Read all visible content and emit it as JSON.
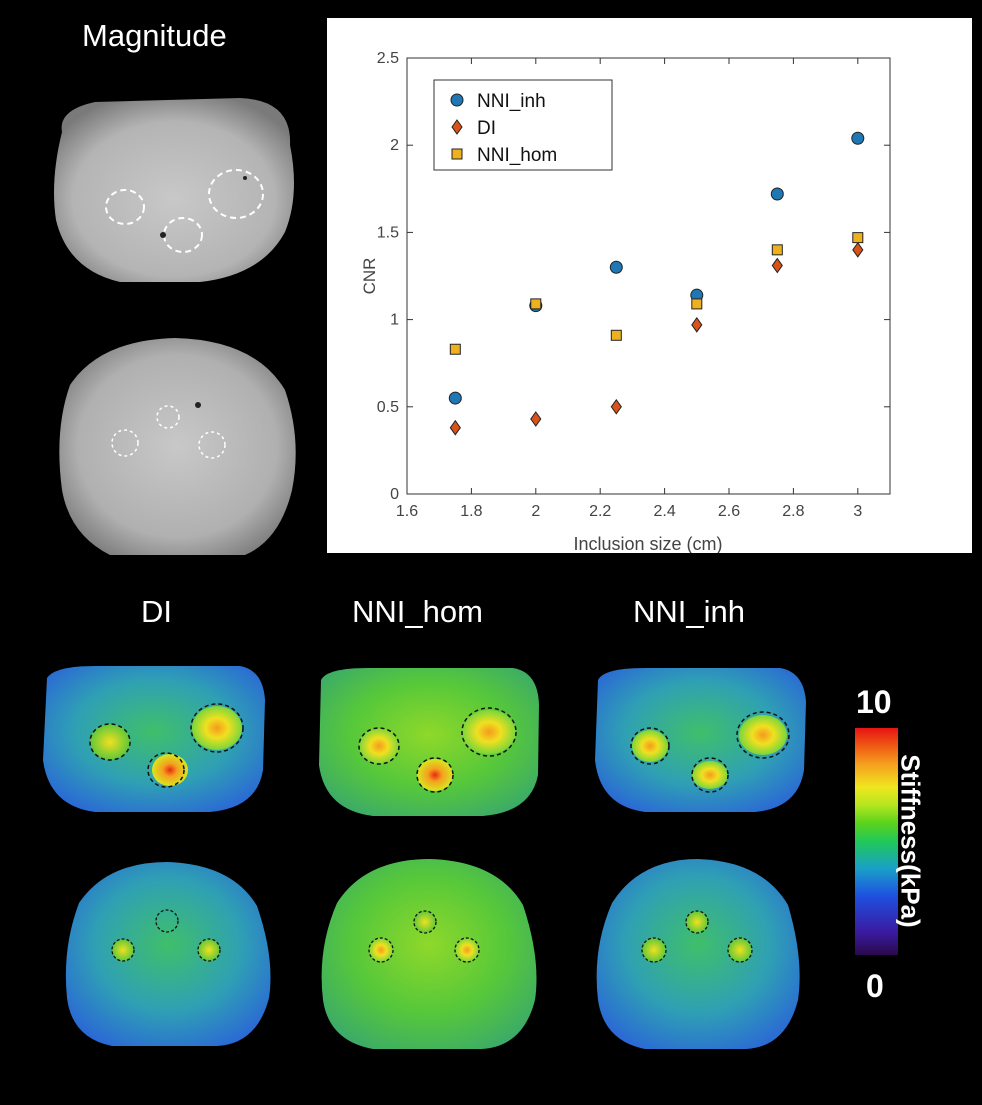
{
  "labels": {
    "magnitude": "Magnitude",
    "di": "DI",
    "nni_hom": "NNI_hom",
    "nni_inh": "NNI_inh",
    "colorbar_max": "10",
    "colorbar_min": "0",
    "colorbar_title": "Stiffness(kPa)"
  },
  "chart_data": {
    "type": "scatter",
    "title": "",
    "xlabel": "Inclusion size (cm)",
    "ylabel": "CNR",
    "xlim": [
      1.6,
      3.1
    ],
    "ylim": [
      0,
      2.5
    ],
    "xticks": [
      "1.6",
      "1.8",
      "2",
      "2.2",
      "2.4",
      "2.6",
      "2.8",
      "3"
    ],
    "yticks": [
      "0",
      "0.5",
      "1",
      "1.5",
      "2",
      "2.5"
    ],
    "grid": false,
    "legend_position": "top-left",
    "x": [
      1.75,
      2.0,
      2.25,
      2.5,
      2.75,
      3.0
    ],
    "series": [
      {
        "name": "NNI_inh",
        "marker": "circle",
        "color": "#1f77b4",
        "values": [
          0.55,
          1.08,
          1.3,
          1.14,
          1.72,
          2.04
        ]
      },
      {
        "name": "DI",
        "marker": "diamond",
        "color": "#d95319",
        "values": [
          0.38,
          0.43,
          0.5,
          0.97,
          1.31,
          1.4
        ]
      },
      {
        "name": "NNI_hom",
        "marker": "square",
        "color": "#edb120",
        "values": [
          0.83,
          1.09,
          0.91,
          1.09,
          1.4,
          1.47
        ]
      }
    ]
  }
}
